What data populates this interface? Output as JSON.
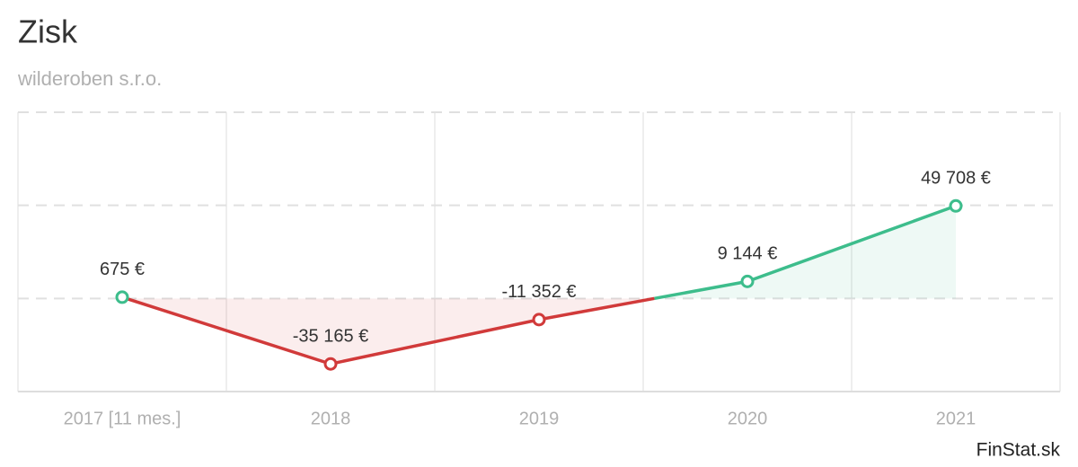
{
  "chart_data": {
    "type": "line",
    "title": "Zisk",
    "subtitle": "wilderoben s.r.o.",
    "source": "FinStat.sk",
    "categories": [
      "2017 [11 mes.]",
      "2018",
      "2019",
      "2020",
      "2021"
    ],
    "values": [
      675,
      -35165,
      -11352,
      9144,
      49708
    ],
    "value_labels": [
      "675 €",
      "-35 165 €",
      "-11 352 €",
      "9 144 €",
      "49 708 €"
    ],
    "positive_color": "#3dbd8c",
    "negative_color": "#d13a3a",
    "ylim": [
      -50000,
      100000
    ],
    "grid_lines": [
      0,
      50000,
      100000
    ]
  }
}
